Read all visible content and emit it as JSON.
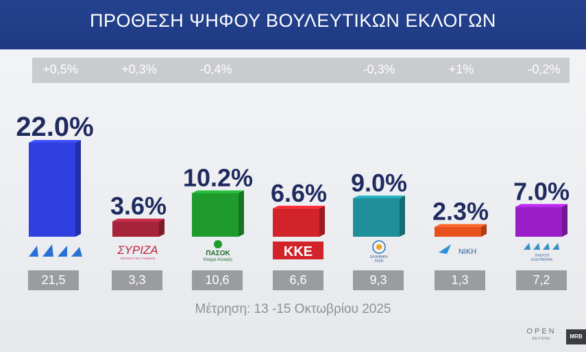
{
  "header": {
    "title": "ΠΡΟΘΕΣΗ ΨΗΦΟΥ ΒΟΥΛΕΥΤΙΚΩΝ ΕΚΛΟΓΩΝ"
  },
  "chart_data": {
    "type": "bar",
    "title": "ΠΡΟΘΕΣΗ ΨΗΦΟΥ ΒΟΥΛΕΥΤΙΚΩΝ ΕΚΛΟΓΩΝ",
    "categories": [
      "ΝΔ",
      "ΣΥΡΙΖΑ",
      "ΠΑΣΟΚ",
      "ΚΚΕ",
      "ΕΛΛΗΝΙΚΗ ΛΥΣΗ",
      "ΝΙΚΗ",
      "ΠΛΕΥΣΗ ΕΛΕΥΘΕΡΙΑΣ"
    ],
    "values": [
      22.0,
      3.6,
      10.2,
      6.6,
      9.0,
      2.3,
      7.0
    ],
    "value_labels": [
      "22.0%",
      "3.6%",
      "10.2%",
      "6.6%",
      "9.0%",
      "2.3%",
      "7.0%"
    ],
    "changes": [
      "+0,5%",
      "+0,3%",
      "-0,4%",
      "",
      "-0,3%",
      "+1%",
      "-0,2%"
    ],
    "previous_values": [
      "21,5",
      "3,3",
      "10,6",
      "6,6",
      "9,3",
      "1,3",
      "7,2"
    ],
    "colors": [
      "#2f3fe0",
      "#a5243a",
      "#1f9b2e",
      "#d2232a",
      "#1f8f9a",
      "#e8501c",
      "#9a1ec7"
    ],
    "ylim": [
      0,
      22
    ]
  },
  "logos": {
    "nd": "ΝΔ",
    "syriza": "ΣΥΡΙΖΑ",
    "syriza_sub": "ΠΡΟΟΔΕΥΤΙΚΗ ΣΥΜΜΑΧΙΑ",
    "pasok": "ΠΑΣΟΚ",
    "pasok_sub": "Κίνημα Αλλαγής",
    "kke": "ΚΚΕ",
    "elliniki_line1": "ΕΛΛΗΝΙΚΗ",
    "elliniki_line2": "ΛΥΣΗ",
    "niki": "ΝΙΚΗ",
    "plefsi_line1": "ΠΛΕΥΣΗ",
    "plefsi_line2": "ΕΛΕΥΘΕΡΙΑΣ"
  },
  "footnote": "Μέτρηση: 13 -15 Οκτωβρίου 2025",
  "brand": {
    "name": "OPEN",
    "sub": "BEYOND",
    "mrb": "MRB"
  }
}
